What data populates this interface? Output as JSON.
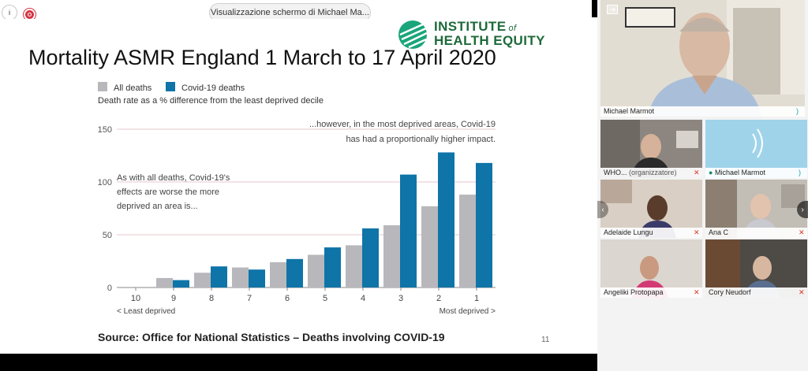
{
  "share": {
    "label": "Visualizzazione schermo di Michael Ma..."
  },
  "logo": {
    "line1": "INSTITUTE",
    "line1_suffix": "of",
    "line2": "HEALTH EQUITY",
    "color": "#1d6a3a"
  },
  "slide": {
    "title": "Mortality ASMR England 1 March to 17 April 2020",
    "source": "Source: Office for National Statistics – Deaths involving COVID-19",
    "page_number": "11"
  },
  "chart_data": {
    "type": "bar",
    "title": "",
    "subtitle": "Death rate as a % difference from the least deprived decile",
    "categories": [
      "10",
      "9",
      "8",
      "7",
      "6",
      "5",
      "4",
      "3",
      "2",
      "1"
    ],
    "series": [
      {
        "name": "All deaths",
        "color": "#b8b8bc",
        "values": [
          0,
          9,
          14,
          19,
          24,
          31,
          40,
          59,
          77,
          88
        ]
      },
      {
        "name": "Covid-19 deaths",
        "color": "#0f74a8",
        "values": [
          0,
          7,
          20,
          17,
          27,
          38,
          56,
          107,
          128,
          118
        ]
      }
    ],
    "ylim": [
      0,
      150
    ],
    "yticks": [
      0,
      50,
      100,
      150
    ],
    "grid": true,
    "legend_position": "top-left",
    "x_note_left": "< Least deprived",
    "x_note_right": "Most deprived >",
    "annotation_left": [
      "As with all deaths, Covid-19's",
      "effects are worse the more",
      "deprived an area is..."
    ],
    "annotation_right": [
      "...however, in the most deprived areas, Covid-19",
      "has had a proportionally higher impact."
    ]
  },
  "participants": {
    "main": {
      "name": "Michael Marmot"
    },
    "tiles": [
      {
        "name": "WHO...",
        "role": "(organizzatore)",
        "muted": true
      },
      {
        "name": "Michael Marmot",
        "muted": false
      },
      {
        "name": "Adelaide Lungu",
        "muted": true
      },
      {
        "name": "Ana C",
        "muted": true
      },
      {
        "name": "Angeliki Protopapa",
        "muted": true
      },
      {
        "name": "Cory Neudorf",
        "muted": true
      }
    ]
  }
}
